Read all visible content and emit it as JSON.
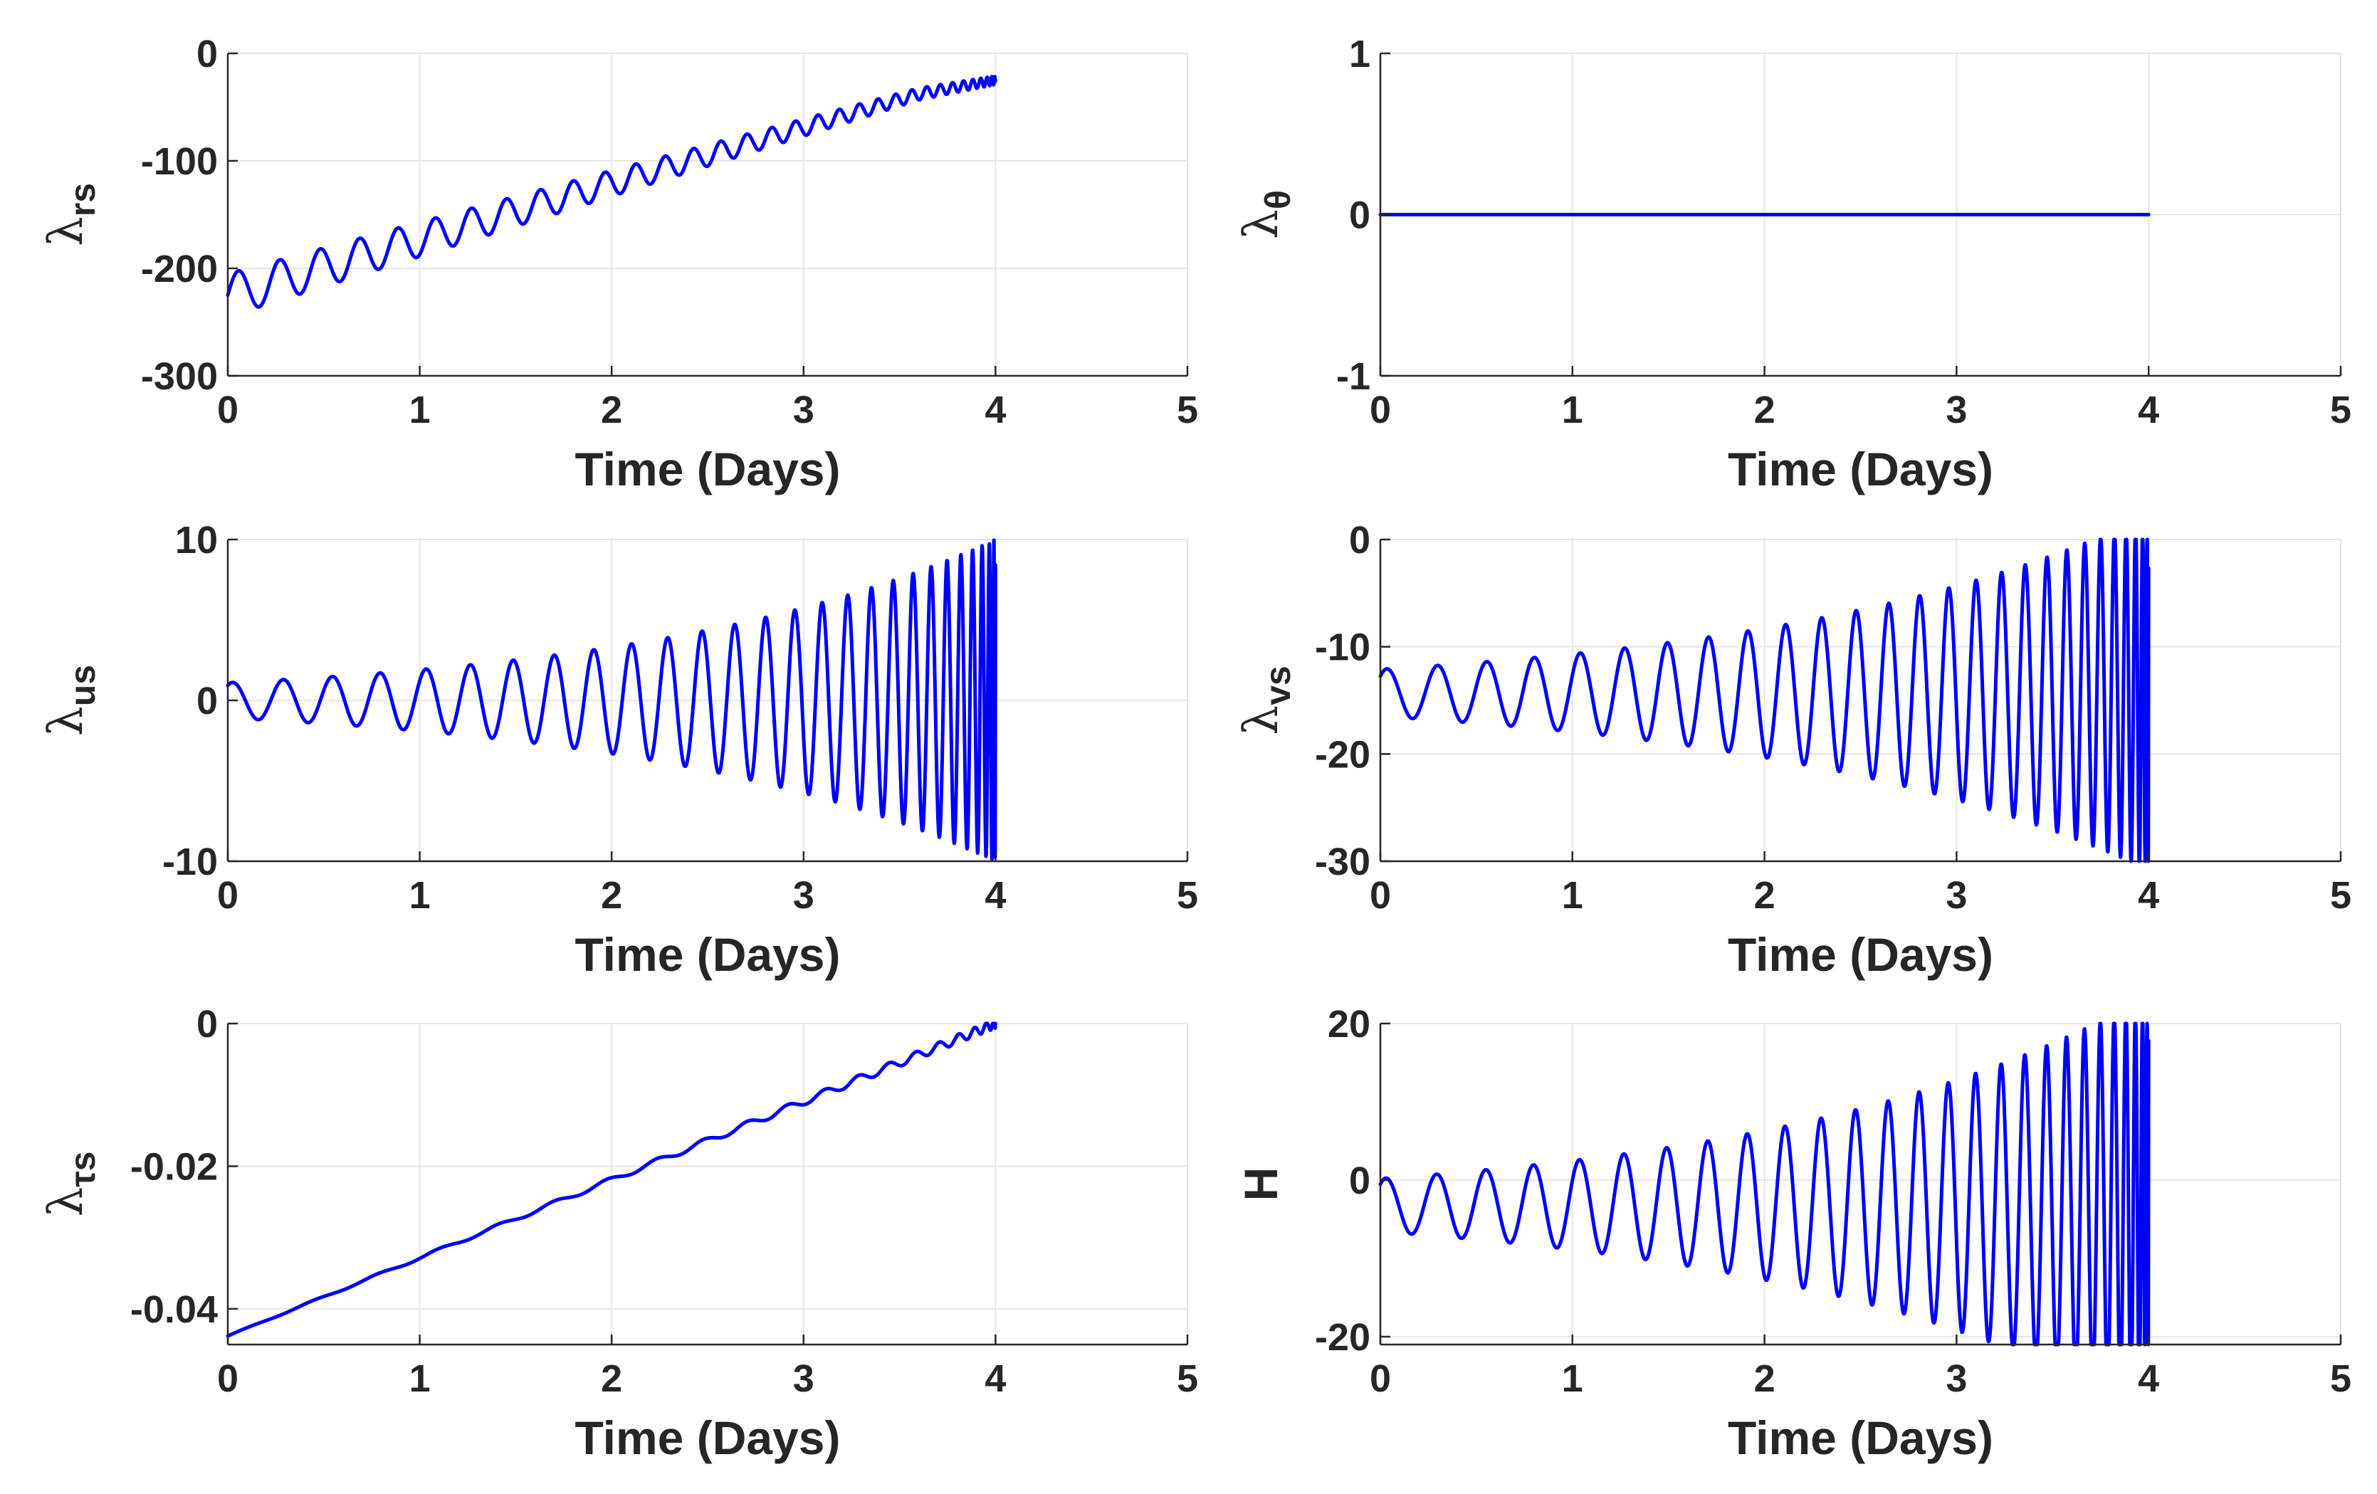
{
  "chart_data": [
    {
      "id": "lambda_rs",
      "type": "line",
      "ylabel": {
        "symbol": "λ",
        "sub": "rs"
      },
      "xlabel": "Time (Days)",
      "xlim": [
        0,
        5
      ],
      "ylim": [
        -300,
        0
      ],
      "xticks": [
        0,
        1,
        2,
        3,
        4,
        5
      ],
      "xtick_labels": [
        "0",
        "1",
        "2",
        "3",
        "4",
        "5"
      ],
      "yticks": [
        -300,
        -200,
        -100,
        0
      ],
      "ytick_labels": [
        "-300",
        "-200",
        "-100",
        "0"
      ],
      "grid": true,
      "color": "#0000ff",
      "series": [
        {
          "name": "lambda_rs",
          "model": {
            "t_end": 4.0,
            "cycles": 33,
            "start": -225,
            "slope": 52,
            "amp0": 20,
            "amp_slope": -4,
            "amp_min": 4
          }
        }
      ]
    },
    {
      "id": "lambda_theta",
      "type": "line",
      "ylabel": {
        "symbol": "λ",
        "sub": "θ"
      },
      "xlabel": "Time (Days)",
      "xlim": [
        0,
        5
      ],
      "ylim": [
        -1,
        1
      ],
      "xticks": [
        0,
        1,
        2,
        3,
        4,
        5
      ],
      "xtick_labels": [
        "0",
        "1",
        "2",
        "3",
        "4",
        "5"
      ],
      "yticks": [
        -1,
        0,
        1
      ],
      "ytick_labels": [
        "-1",
        "0",
        "1"
      ],
      "grid": true,
      "color": "#0000ff",
      "series": [
        {
          "name": "lambda_theta",
          "x": [
            0,
            4.0
          ],
          "y": [
            0,
            0
          ]
        }
      ]
    },
    {
      "id": "lambda_us",
      "type": "line",
      "ylabel": {
        "symbol": "λ",
        "sub": "us"
      },
      "xlabel": "Time (Days)",
      "xlim": [
        0,
        5
      ],
      "ylim": [
        -10,
        10
      ],
      "xticks": [
        0,
        1,
        2,
        3,
        4,
        5
      ],
      "xtick_labels": [
        "0",
        "1",
        "2",
        "3",
        "4",
        "5"
      ],
      "yticks": [
        -10,
        0,
        10
      ],
      "ytick_labels": [
        "-10",
        "0",
        "10"
      ],
      "grid": true,
      "color": "#0000ff",
      "series": [
        {
          "name": "lambda_us",
          "model": {
            "t_end": 4.0,
            "cycles": 27,
            "base": 0,
            "amp0": 1.1,
            "amp_growth": 0.46,
            "phase_end": 1.0
          }
        }
      ]
    },
    {
      "id": "lambda_vs",
      "type": "line",
      "ylabel": {
        "symbol": "λ",
        "sub": "vs"
      },
      "xlabel": "Time (Days)",
      "xlim": [
        0,
        5
      ],
      "ylim": [
        -30,
        0
      ],
      "xticks": [
        0,
        1,
        2,
        3,
        4,
        5
      ],
      "xtick_labels": [
        "0",
        "1",
        "2",
        "3",
        "4",
        "5"
      ],
      "yticks": [
        -30,
        -20,
        -10,
        0
      ],
      "ytick_labels": [
        "-30",
        "-20",
        "-10",
        "0"
      ],
      "grid": true,
      "color": "#0000ff",
      "series": [
        {
          "name": "lambda_vs",
          "model": {
            "t_end": 4.0,
            "cycles": 27,
            "base": -14.3,
            "amp0": 2.2,
            "amp_growth": 0.42,
            "phase_end": 0.78
          }
        }
      ]
    },
    {
      "id": "lambda_tau_s",
      "type": "line",
      "ylabel": {
        "symbol": "λ",
        "sub": "τs"
      },
      "xlabel": "Time (Days)",
      "xlim": [
        0,
        5
      ],
      "ylim": [
        -0.045,
        0
      ],
      "xticks": [
        0,
        1,
        2,
        3,
        4,
        5
      ],
      "xtick_labels": [
        "0",
        "1",
        "2",
        "3",
        "4",
        "5"
      ],
      "yticks": [
        -0.04,
        -0.02,
        0
      ],
      "ytick_labels": [
        "-0.04",
        "-0.02",
        "0"
      ],
      "grid": true,
      "color": "#0000ff",
      "series": [
        {
          "name": "lambda_tau_s",
          "model": {
            "t_end": 4.0,
            "cycles": 20,
            "start": -0.0438,
            "slope": 0.01095,
            "amp0": 5e-05,
            "amp_slope": 0.00015
          }
        }
      ]
    },
    {
      "id": "H",
      "type": "line",
      "ylabel": {
        "symbol": "H",
        "sub": ""
      },
      "xlabel": "Time (Days)",
      "xlim": [
        0,
        5
      ],
      "ylim": [
        -21,
        20
      ],
      "xticks": [
        0,
        1,
        2,
        3,
        4,
        5
      ],
      "xtick_labels": [
        "0",
        "1",
        "2",
        "3",
        "4",
        "5"
      ],
      "yticks": [
        -20,
        0,
        20
      ],
      "ytick_labels": [
        "-20",
        "0",
        "20"
      ],
      "grid": true,
      "color": "#0000ff",
      "series": [
        {
          "name": "H",
          "model": {
            "t_end": 4.0,
            "cycles": 27,
            "base": -3.2,
            "amp0": 3.4,
            "amp_growth": 0.43,
            "phase_end": 0.9
          }
        }
      ]
    }
  ]
}
